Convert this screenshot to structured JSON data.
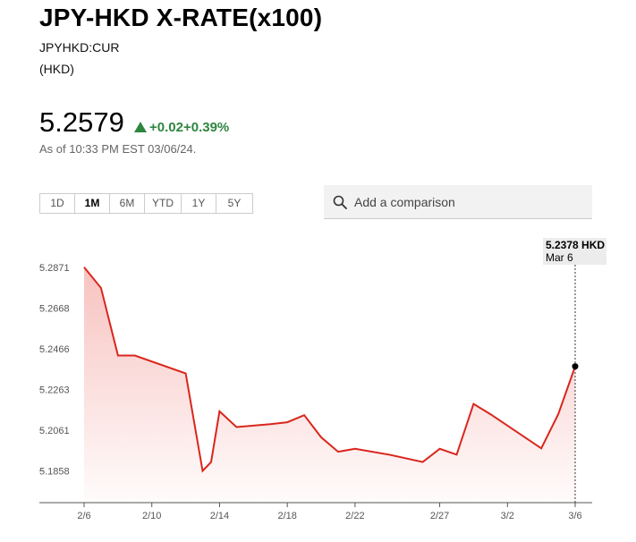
{
  "header": {
    "title": "JPY-HKD X-RATE(x100)",
    "ticker": "JPYHKD:CUR",
    "currency": "(HKD)"
  },
  "quote": {
    "price": "5.2579",
    "change": "+0.02",
    "change_pct": "+0.39%",
    "as_of": "As of 10:33 PM EST 03/06/24.",
    "up_color": "#2e8540"
  },
  "ranges": [
    "1D",
    "1M",
    "6M",
    "YTD",
    "1Y",
    "5Y"
  ],
  "selected_range": "1M",
  "search": {
    "placeholder": "Add a comparison",
    "icon": "search-icon"
  },
  "tooltip": {
    "value": "5.2378 HKD",
    "date": "Mar 6"
  },
  "chart_data": {
    "type": "area",
    "line_color": "#d9261c",
    "ylim": [
      5.17,
      5.291
    ],
    "y_ticks": [
      "5.2871",
      "5.2668",
      "5.2466",
      "5.2263",
      "5.2061",
      "5.1858"
    ],
    "x_ticks": [
      "2/6",
      "2/10",
      "2/14",
      "2/18",
      "2/22",
      "2/27",
      "3/2",
      "3/6"
    ],
    "x_tick_dates": [
      "2024-02-06",
      "2024-02-10",
      "2024-02-14",
      "2024-02-18",
      "2024-02-22",
      "2024-02-27",
      "2024-03-02",
      "2024-03-06"
    ],
    "grid": false,
    "series": [
      {
        "x": [
          "2024-02-06",
          "2024-02-07",
          "2024-02-08",
          "2024-02-09",
          "2024-02-12",
          "2024-02-13",
          "2024-02-13T12:00",
          "2024-02-14",
          "2024-02-15",
          "2024-02-17",
          "2024-02-18",
          "2024-02-19",
          "2024-02-20",
          "2024-02-21",
          "2024-02-22",
          "2024-02-24",
          "2024-02-26",
          "2024-02-27",
          "2024-02-28",
          "2024-02-29",
          "2024-03-01",
          "2024-03-04",
          "2024-03-05",
          "2024-03-06"
        ],
        "values": [
          5.2871,
          5.2768,
          5.2432,
          5.2432,
          5.2343,
          5.1858,
          5.1902,
          5.2154,
          5.2076,
          5.209,
          5.21,
          5.2135,
          5.2025,
          5.1953,
          5.1968,
          5.1939,
          5.1902,
          5.1968,
          5.1939,
          5.2191,
          5.214,
          5.197,
          5.214,
          5.2378
        ]
      }
    ],
    "marker": {
      "x": "2024-03-06",
      "value": 5.2378
    }
  }
}
